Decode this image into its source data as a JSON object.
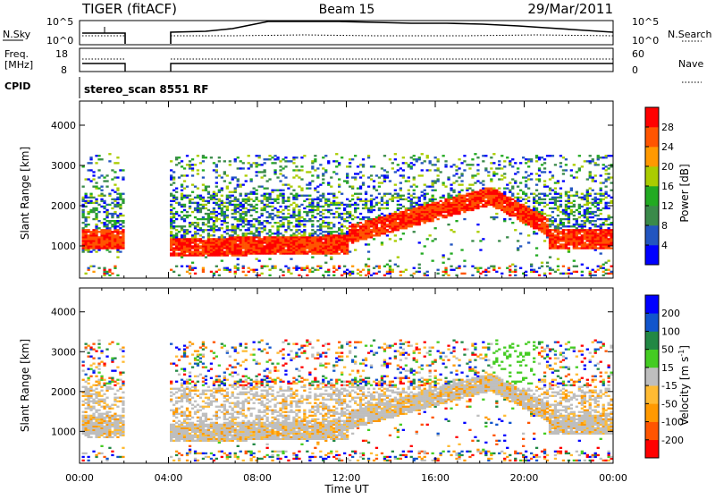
{
  "header": {
    "title_left": "TIGER (fitACF)",
    "title_center": "Beam 15",
    "title_right": "29/Mar/2011"
  },
  "strip_labels": {
    "nsky": "N.Sky",
    "nsearch": "N.Search",
    "freq_line1": "Freq.",
    "freq_line2": "[MHz]",
    "nave": "Nave",
    "cpid": "CPID",
    "noise_tick_top_left": "10^5",
    "noise_tick_bottom_left": "10^0",
    "noise_tick_top_right": "10^5",
    "noise_tick_bottom_right": "10^0",
    "freq_tick_top": "18",
    "freq_tick_bottom": "8",
    "nave_tick_top": "60",
    "nave_tick_bottom": "0"
  },
  "cpid_text": "stereo_scan 8551 RF",
  "colors": {
    "power": [
      "#0000ff",
      "#2255c0",
      "#3a8a4a",
      "#22aa22",
      "#aacc00",
      "#ff9900",
      "#ff5500",
      "#ff0000"
    ],
    "velocity": [
      "#ff0000",
      "#ff5500",
      "#ff9900",
      "#ffbb33",
      "#bebebe",
      "#44cc22",
      "#228844",
      "#1155cc",
      "#0000ff"
    ]
  },
  "chart_data": [
    {
      "type": "heatmap",
      "name": "power",
      "ylabel": "Slant Range [km]",
      "xlabel": "",
      "x_ticks": [
        "00:00",
        "04:00",
        "08:00",
        "12:00",
        "16:00",
        "20:00",
        "00:00"
      ],
      "x_range_hours": [
        0,
        24
      ],
      "y_ticks": [
        1000,
        2000,
        3000,
        4000
      ],
      "ylim": [
        200,
        4600
      ],
      "colorbar_label": "Power [dB]",
      "colorbar_ticks": [
        4,
        8,
        12,
        16,
        20,
        24,
        28
      ],
      "data_gap_hours": [
        2.0,
        4.0
      ]
    },
    {
      "type": "heatmap",
      "name": "velocity",
      "ylabel": "Slant Range [km]",
      "xlabel": "Time UT",
      "x_ticks": [
        "00:00",
        "04:00",
        "08:00",
        "12:00",
        "16:00",
        "20:00",
        "00:00"
      ],
      "x_range_hours": [
        0,
        24
      ],
      "y_ticks": [
        1000,
        2000,
        3000,
        4000
      ],
      "ylim": [
        200,
        4600
      ],
      "colorbar_label_main": "Velocity [m s",
      "colorbar_label_sup": "-1",
      "colorbar_label_end": "]",
      "colorbar_ticks": [
        200,
        100,
        50,
        15,
        -15,
        -50,
        -100,
        -200
      ],
      "data_gap_hours": [
        2.0,
        4.0
      ]
    }
  ]
}
